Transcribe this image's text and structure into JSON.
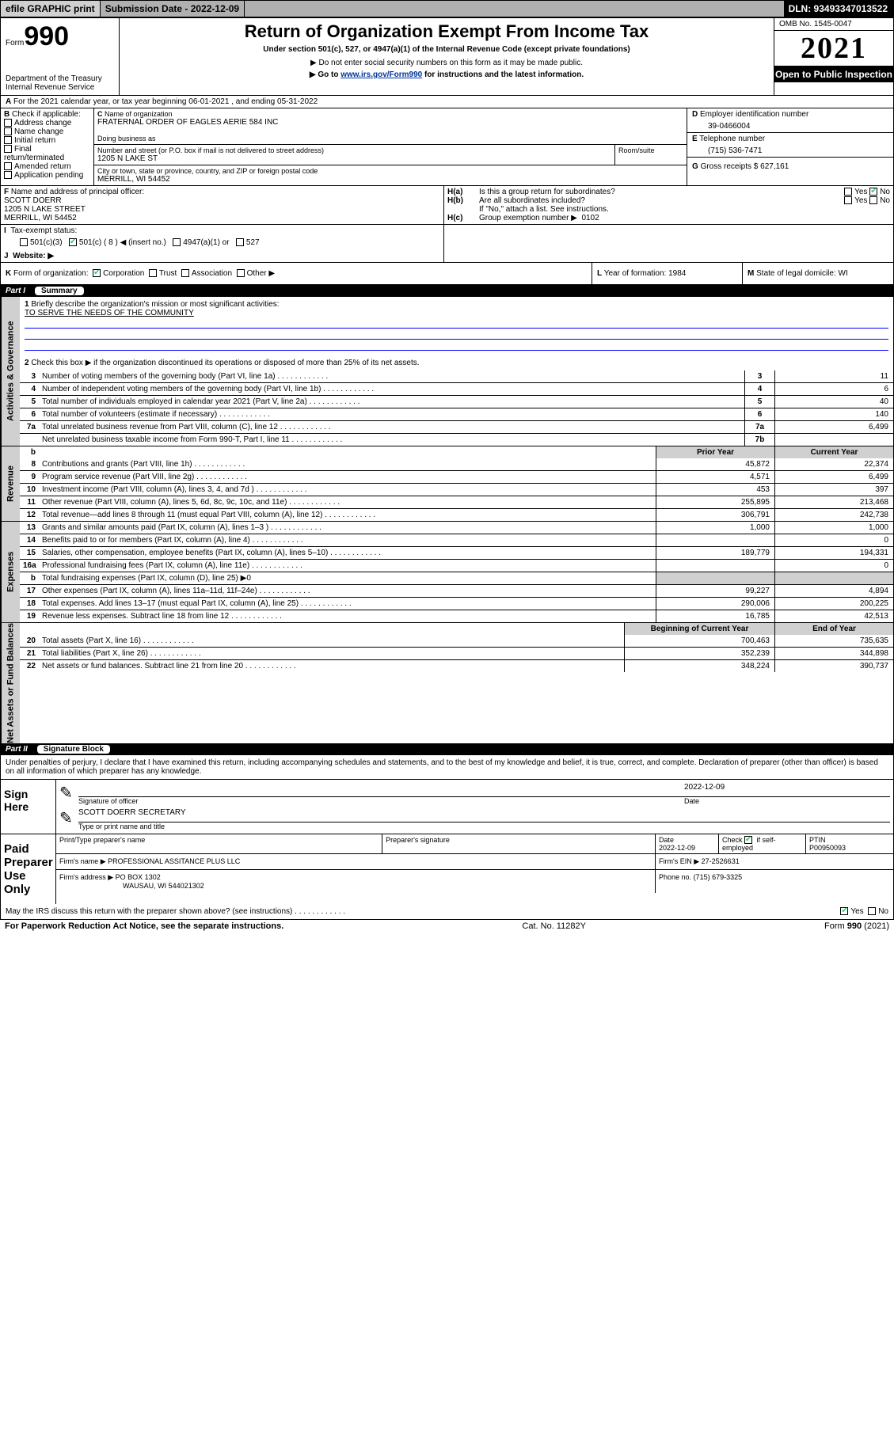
{
  "top": {
    "efile": "efile GRAPHIC print",
    "submission_label": "Submission Date - 2022-12-09",
    "dln": "DLN: 93493347013522"
  },
  "header": {
    "form_word": "Form",
    "form_num": "990",
    "dept": "Department of the Treasury",
    "irs": "Internal Revenue Service",
    "title": "Return of Organization Exempt From Income Tax",
    "subtitle": "Under section 501(c), 527, or 4947(a)(1) of the Internal Revenue Code (except private foundations)",
    "note1": "▶ Do not enter social security numbers on this form as it may be made public.",
    "note2_pre": "▶ Go to ",
    "note2_link": "www.irs.gov/Form990",
    "note2_post": " for instructions and the latest information.",
    "omb": "OMB No. 1545-0047",
    "year": "2021",
    "open": "Open to Public Inspection"
  },
  "A": {
    "text": "For the 2021 calendar year, or tax year beginning 06-01-2021   , and ending 05-31-2022"
  },
  "B": {
    "label": "Check if applicable:",
    "items": [
      "Address change",
      "Name change",
      "Initial return",
      "Final return/terminated",
      "Amended return",
      "Application pending"
    ]
  },
  "C": {
    "org_label": "Name of organization",
    "org": "FRATERNAL ORDER OF EAGLES AERIE 584 INC",
    "dba_label": "Doing business as",
    "street_label": "Number and street (or P.O. box if mail is not delivered to street address)",
    "room_label": "Room/suite",
    "street": "1205 N LAKE ST",
    "city_label": "City or town, state or province, country, and ZIP or foreign postal code",
    "city": "MERRILL, WI  54452"
  },
  "D": {
    "label": "Employer identification number",
    "val": "39-0466004"
  },
  "E": {
    "label": "Telephone number",
    "val": "(715) 536-7471"
  },
  "G": {
    "label": "Gross receipts $",
    "val": "627,161"
  },
  "F": {
    "label": "Name and address of principal officer:",
    "name": "SCOTT DOERR",
    "street": "1205 N LAKE STREET",
    "city": "MERRILL, WI  54452"
  },
  "H": {
    "a": "Is this a group return for subordinates?",
    "b": "Are all subordinates included?",
    "b_note": "If \"No,\" attach a list. See instructions.",
    "c": "Group exemption number ▶",
    "c_val": "0102",
    "yes": "Yes",
    "no": "No"
  },
  "I": {
    "label": "Tax-exempt status:",
    "opts": [
      "501(c)(3)",
      "501(c) ( 8 ) ◀ (insert no.)",
      "4947(a)(1) or",
      "527"
    ]
  },
  "J": {
    "label": "Website: ▶"
  },
  "K": {
    "label": "Form of organization:",
    "opts": [
      "Corporation",
      "Trust",
      "Association",
      "Other ▶"
    ]
  },
  "L": {
    "label": "Year of formation:",
    "val": "1984"
  },
  "M": {
    "label": "State of legal domicile:",
    "val": "WI"
  },
  "part1": {
    "num": "Part I",
    "title": "Summary"
  },
  "p1": {
    "l1a": "Briefly describe the organization's mission or most significant activities:",
    "l1b": "TO SERVE THE NEEDS OF THE COMMUNITY",
    "l2": "Check this box ▶        if the organization discontinued its operations or disposed of more than 25% of its net assets."
  },
  "gov_rows": [
    {
      "n": "3",
      "d": "Number of voting members of the governing body (Part VI, line 1a)",
      "b": "3",
      "v": "11"
    },
    {
      "n": "4",
      "d": "Number of independent voting members of the governing body (Part VI, line 1b)",
      "b": "4",
      "v": "6"
    },
    {
      "n": "5",
      "d": "Total number of individuals employed in calendar year 2021 (Part V, line 2a)",
      "b": "5",
      "v": "40"
    },
    {
      "n": "6",
      "d": "Total number of volunteers (estimate if necessary)",
      "b": "6",
      "v": "140"
    },
    {
      "n": "7a",
      "d": "Total unrelated business revenue from Part VIII, column (C), line 12",
      "b": "7a",
      "v": "6,499"
    },
    {
      "n": "",
      "d": "Net unrelated business taxable income from Form 990-T, Part I, line 11",
      "b": "7b",
      "v": ""
    }
  ],
  "two_col_head": {
    "ln": "b",
    "prior": "Prior Year",
    "curr": "Current Year"
  },
  "rev_rows": [
    {
      "n": "8",
      "d": "Contributions and grants (Part VIII, line 1h)",
      "p": "45,872",
      "c": "22,374"
    },
    {
      "n": "9",
      "d": "Program service revenue (Part VIII, line 2g)",
      "p": "4,571",
      "c": "6,499"
    },
    {
      "n": "10",
      "d": "Investment income (Part VIII, column (A), lines 3, 4, and 7d )",
      "p": "453",
      "c": "397"
    },
    {
      "n": "11",
      "d": "Other revenue (Part VIII, column (A), lines 5, 6d, 8c, 9c, 10c, and 11e)",
      "p": "255,895",
      "c": "213,468"
    },
    {
      "n": "12",
      "d": "Total revenue—add lines 8 through 11 (must equal Part VIII, column (A), line 12)",
      "p": "306,791",
      "c": "242,738"
    }
  ],
  "exp_rows": [
    {
      "n": "13",
      "d": "Grants and similar amounts paid (Part IX, column (A), lines 1–3 )",
      "p": "1,000",
      "c": "1,000"
    },
    {
      "n": "14",
      "d": "Benefits paid to or for members (Part IX, column (A), line 4)",
      "p": "",
      "c": "0"
    },
    {
      "n": "15",
      "d": "Salaries, other compensation, employee benefits (Part IX, column (A), lines 5–10)",
      "p": "189,779",
      "c": "194,331"
    },
    {
      "n": "16a",
      "d": "Professional fundraising fees (Part IX, column (A), line 11e)",
      "p": "",
      "c": "0"
    },
    {
      "n": "b",
      "d": "Total fundraising expenses (Part IX, column (D), line 25) ▶0",
      "p": "__shade__",
      "c": "__shade__"
    },
    {
      "n": "17",
      "d": "Other expenses (Part IX, column (A), lines 11a–11d, 11f–24e)",
      "p": "99,227",
      "c": "4,894"
    },
    {
      "n": "18",
      "d": "Total expenses. Add lines 13–17 (must equal Part IX, column (A), line 25)",
      "p": "290,006",
      "c": "200,225"
    },
    {
      "n": "19",
      "d": "Revenue less expenses. Subtract line 18 from line 12",
      "p": "16,785",
      "c": "42,513"
    }
  ],
  "net_head": {
    "prior": "Beginning of Current Year",
    "curr": "End of Year"
  },
  "net_rows": [
    {
      "n": "20",
      "d": "Total assets (Part X, line 16)",
      "p": "700,463",
      "c": "735,635"
    },
    {
      "n": "21",
      "d": "Total liabilities (Part X, line 26)",
      "p": "352,239",
      "c": "344,898"
    },
    {
      "n": "22",
      "d": "Net assets or fund balances. Subtract line 21 from line 20",
      "p": "348,224",
      "c": "390,737"
    }
  ],
  "part2": {
    "num": "Part II",
    "title": "Signature Block"
  },
  "sig": {
    "decl": "Under penalties of perjury, I declare that I have examined this return, including accompanying schedules and statements, and to the best of my knowledge and belief, it is true, correct, and complete. Declaration of preparer (other than officer) is based on all information of which preparer has any knowledge.",
    "sign_here": "Sign Here",
    "sig_of_officer": "Signature of officer",
    "date": "Date",
    "date_val": "2022-12-09",
    "officer": "SCOTT DOERR SECRETARY",
    "type_name": "Type or print name and title",
    "paid": "Paid Preparer Use Only",
    "prep_name_lbl": "Print/Type preparer's name",
    "prep_sig_lbl": "Preparer's signature",
    "date_lbl": "Date",
    "prep_date": "2022-12-09",
    "check_lbl": "Check       if self-employed",
    "ptin_lbl": "PTIN",
    "ptin": "P00950093",
    "firm_name_lbl": "Firm's name    ▶",
    "firm_name": "PROFESSIONAL ASSITANCE PLUS LLC",
    "firm_ein_lbl": "Firm's EIN ▶",
    "firm_ein": "27-2526631",
    "firm_addr_lbl": "Firm's address ▶",
    "firm_addr1": "PO BOX 1302",
    "firm_addr2": "WAUSAU, WI  544021302",
    "phone_lbl": "Phone no.",
    "phone": "(715) 679-3325",
    "may_irs": "May the IRS discuss this return with the preparer shown above? (see instructions)"
  },
  "footer": {
    "left": "For Paperwork Reduction Act Notice, see the separate instructions.",
    "mid": "Cat. No. 11282Y",
    "right_pre": "Form ",
    "right_bold": "990",
    "right_post": " (2021)"
  },
  "side_labels": {
    "gov": "Activities & Governance",
    "rev": "Revenue",
    "exp": "Expenses",
    "net": "Net Assets or Fund Balances"
  },
  "colors": {
    "accent": "#2ecc71",
    "link": "#003399",
    "shade": "#d0d0d0"
  }
}
